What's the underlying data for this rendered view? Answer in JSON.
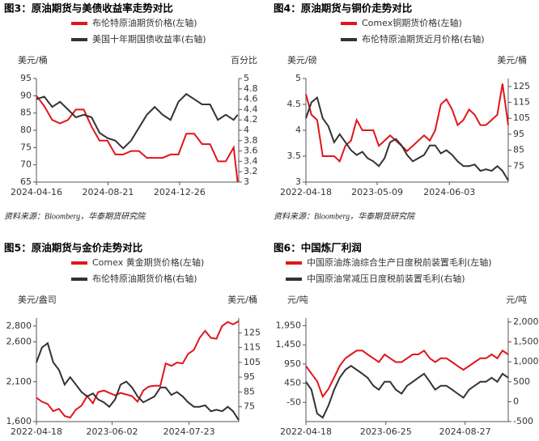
{
  "chart_data": [
    {
      "type": "line",
      "title": "图3：原油期货与美债收益率走势对比",
      "y_label": "美元/桶",
      "y2_label": "百分比",
      "source": "资料来源：Bloomberg，华泰期货研究院",
      "x": [
        "2024-04-16",
        "2024-04-30",
        "2024-05-14",
        "2024-05-28",
        "2024-06-11",
        "2024-06-25",
        "2024-07-09",
        "2024-07-23",
        "2024-08-06",
        "2024-08-20",
        "2024-09-03",
        "2024-09-17",
        "2024-10-01",
        "2024-10-15",
        "2024-10-29",
        "2024-11-12",
        "2024-11-26",
        "2024-12-10",
        "2024-12-24",
        "2025-01-07",
        "2025-01-21",
        "2025-02-04",
        "2025-02-18",
        "2025-03-04",
        "2025-03-18",
        "2025-04-01",
        "2025-04-08"
      ],
      "xlim": [
        "2024-04-16",
        "2025-04-10"
      ],
      "xticks": [
        "2024-04-16",
        "2024-08-21",
        "2024-12-26"
      ],
      "ylim": [
        65,
        95
      ],
      "yticks": [
        65,
        70,
        75,
        80,
        85,
        90,
        95
      ],
      "y2lim": [
        3,
        5
      ],
      "y2ticks": [
        3,
        3.2,
        3.4,
        3.6,
        3.8,
        4,
        4.2,
        4.4,
        4.6,
        4.8,
        5
      ],
      "series": [
        {
          "name": "布伦特原油期货价格(左轴)",
          "color": "#e0161b",
          "values": [
            90,
            87,
            83,
            82,
            83,
            86,
            86,
            81,
            77,
            77,
            73,
            73,
            74,
            74,
            72,
            72,
            72,
            73,
            73,
            79,
            79,
            76,
            76,
            71,
            71,
            75,
            65
          ]
        },
        {
          "name": "美国十年期国债收益率(右轴)",
          "color": "#333333",
          "axis": "y2",
          "values": [
            4.6,
            4.65,
            4.45,
            4.55,
            4.4,
            4.25,
            4.3,
            4.25,
            3.95,
            3.85,
            3.8,
            3.65,
            3.8,
            4.05,
            4.3,
            4.45,
            4.3,
            4.2,
            4.55,
            4.7,
            4.6,
            4.5,
            4.5,
            4.2,
            4.3,
            4.2,
            4.3
          ]
        }
      ]
    },
    {
      "type": "line",
      "title": "图4：原油期货与铜价走势对比",
      "y_label": "美元/磅",
      "y2_label": "美元/桶",
      "source": "资料来源：Bloomberg，华泰期货研究院",
      "x": [
        "2022-04-18",
        "2022-05-18",
        "2022-06-18",
        "2022-07-18",
        "2022-08-18",
        "2022-09-18",
        "2022-10-18",
        "2022-11-18",
        "2022-12-18",
        "2023-01-18",
        "2023-02-18",
        "2023-03-18",
        "2023-04-18",
        "2023-05-18",
        "2023-06-18",
        "2023-07-18",
        "2023-08-18",
        "2023-09-18",
        "2023-10-18",
        "2023-11-18",
        "2023-12-18",
        "2024-01-18",
        "2024-02-18",
        "2024-03-18",
        "2024-04-18",
        "2024-05-18",
        "2024-06-18",
        "2024-07-18",
        "2024-08-18",
        "2024-09-18",
        "2024-10-18",
        "2024-11-18",
        "2024-12-18",
        "2025-01-18",
        "2025-02-18",
        "2025-03-18",
        "2025-04-18"
      ],
      "xlim": [
        "2022-04-18",
        "2025-04-18"
      ],
      "xticks": [
        "2022-04-18",
        "2023-05-09",
        "2024-06-03"
      ],
      "ylim": [
        3,
        5
      ],
      "yticks": [
        3,
        3.5,
        4,
        4.5,
        5
      ],
      "y2lim": [
        65,
        130
      ],
      "y2ticks": [
        75,
        85,
        95,
        105,
        115,
        125
      ],
      "series": [
        {
          "name": "Comex铜期货价格(左轴)",
          "color": "#e0161b",
          "values": [
            4.7,
            4.3,
            4.2,
            3.5,
            3.5,
            3.5,
            3.4,
            3.7,
            3.8,
            4.2,
            4,
            4,
            4,
            3.7,
            3.8,
            3.9,
            3.8,
            3.7,
            3.6,
            3.7,
            3.8,
            3.9,
            3.8,
            4,
            4.5,
            4.6,
            4.4,
            4.1,
            4.2,
            4.4,
            4.3,
            4.1,
            4.1,
            4.2,
            4.3,
            4.9,
            4.1
          ]
        },
        {
          "name": "布伦特原油期货近月价格(右轴)",
          "color": "#333333",
          "axis": "y2",
          "values": [
            105,
            115,
            118,
            105,
            100,
            90,
            95,
            90,
            85,
            82,
            84,
            80,
            78,
            75,
            80,
            90,
            92,
            88,
            82,
            78,
            80,
            82,
            88,
            88,
            83,
            85,
            82,
            78,
            75,
            75,
            76,
            72,
            73,
            72,
            75,
            72,
            66
          ]
        }
      ]
    },
    {
      "type": "line",
      "title": "图5：原油期货与金价走势对比",
      "y_label": "美元/盎司",
      "y2_label": "美元/桶",
      "x": [
        "2022-04-18",
        "2022-05-18",
        "2022-06-18",
        "2022-07-18",
        "2022-08-18",
        "2022-09-18",
        "2022-10-18",
        "2022-11-18",
        "2022-12-18",
        "2023-01-18",
        "2023-02-18",
        "2023-03-18",
        "2023-04-18",
        "2023-05-18",
        "2023-06-18",
        "2023-07-18",
        "2023-08-18",
        "2023-09-18",
        "2023-10-18",
        "2023-11-18",
        "2023-12-18",
        "2024-01-18",
        "2024-02-18",
        "2024-03-18",
        "2024-04-18",
        "2024-05-18",
        "2024-06-18",
        "2024-07-18",
        "2024-08-18",
        "2024-09-18",
        "2024-10-18",
        "2024-11-18",
        "2024-12-18",
        "2025-01-18",
        "2025-02-18",
        "2025-03-18",
        "2025-04-18"
      ],
      "xlim": [
        "2022-04-18",
        "2025-04-18"
      ],
      "xticks": [
        "2022-04-18",
        "2023-06-02",
        "2024-07-23"
      ],
      "ylim": [
        1600,
        2900
      ],
      "yticks": [
        {
          "value": 1600,
          "label": "1,600"
        },
        {
          "value": 2100,
          "label": "2,100"
        },
        {
          "value": 2600,
          "label": "2,600"
        },
        {
          "value": 2800,
          "label": "2,800"
        }
      ],
      "y2lim": [
        65,
        135
      ],
      "y2ticks": [
        75,
        85,
        95,
        105,
        115,
        125
      ],
      "series": [
        {
          "name": "Comex 黄金期货价格(左轴)",
          "color": "#e0161b",
          "values": [
            1900,
            1850,
            1820,
            1730,
            1760,
            1670,
            1650,
            1750,
            1800,
            1920,
            1830,
            1970,
            1990,
            1960,
            1930,
            1960,
            1940,
            1920,
            1850,
            1990,
            2040,
            2050,
            2050,
            2330,
            2300,
            2340,
            2330,
            2450,
            2500,
            2650,
            2740,
            2650,
            2640,
            2800,
            2850,
            2820,
            2860
          ]
        },
        {
          "name": "布伦特原油期货价格(右轴)",
          "color": "#333333",
          "axis": "y2",
          "values": [
            105,
            115,
            118,
            105,
            100,
            90,
            95,
            90,
            85,
            82,
            84,
            80,
            78,
            75,
            80,
            90,
            92,
            88,
            82,
            78,
            80,
            82,
            88,
            88,
            83,
            85,
            82,
            78,
            75,
            75,
            76,
            72,
            73,
            72,
            75,
            72,
            66
          ]
        }
      ]
    },
    {
      "type": "line",
      "title": "图6：中国炼厂利润",
      "y_label": "元/吨",
      "y2_label": "元/吨",
      "x": [
        "2022-04-18",
        "2022-05-18",
        "2022-06-18",
        "2022-07-18",
        "2022-08-18",
        "2022-09-18",
        "2022-10-18",
        "2022-11-18",
        "2022-12-18",
        "2023-01-18",
        "2023-02-18",
        "2023-03-18",
        "2023-04-18",
        "2023-05-18",
        "2023-06-18",
        "2023-07-18",
        "2023-08-18",
        "2023-09-18",
        "2023-10-18",
        "2023-11-18",
        "2023-12-18",
        "2024-01-18",
        "2024-02-18",
        "2024-03-18",
        "2024-04-18",
        "2024-05-18",
        "2024-06-18",
        "2024-07-18",
        "2024-08-18",
        "2024-09-18",
        "2024-10-18",
        "2024-11-18",
        "2024-12-18",
        "2025-01-18",
        "2025-02-18",
        "2025-03-18",
        "2025-04-18"
      ],
      "xlim": [
        "2022-04-18",
        "2025-04-18"
      ],
      "xticks": [
        "2022-04-18",
        "2023-06-25",
        "2024-08-27"
      ],
      "ylim": [
        -550,
        2150
      ],
      "yticks": [
        -50,
        450,
        950,
        {
          "value": 1450,
          "label": "1,450"
        },
        {
          "value": 1950,
          "label": "1,950"
        }
      ],
      "y2lim": [
        -500,
        2100
      ],
      "y2ticks": [
        -500,
        0,
        500,
        {
          "value": 1000,
          "label": "1,000"
        },
        {
          "value": 1500,
          "label": "1,500"
        },
        {
          "value": 2000,
          "label": "2,000"
        }
      ],
      "series": [
        {
          "name": "中国原油炼油综合生产日度税前装置毛利(左轴)",
          "color": "#e0161b",
          "values": [
            900,
            700,
            500,
            100,
            300,
            600,
            900,
            1100,
            1200,
            1300,
            1300,
            1200,
            1100,
            1000,
            1200,
            1100,
            1000,
            1000,
            1100,
            1200,
            1200,
            1300,
            1100,
            1000,
            1100,
            1100,
            1000,
            900,
            800,
            900,
            1000,
            1100,
            1100,
            1200,
            1100,
            1300,
            1200
          ]
        },
        {
          "name": "中国原油常减压日度税前装置毛利(右轴)",
          "color": "#333333",
          "axis": "y2",
          "values": [
            500,
            300,
            -300,
            -400,
            -100,
            300,
            600,
            800,
            900,
            800,
            700,
            600,
            400,
            300,
            500,
            500,
            300,
            200,
            400,
            500,
            600,
            700,
            500,
            300,
            400,
            400,
            300,
            200,
            100,
            300,
            400,
            500,
            500,
            600,
            500,
            700,
            600
          ]
        }
      ]
    }
  ]
}
